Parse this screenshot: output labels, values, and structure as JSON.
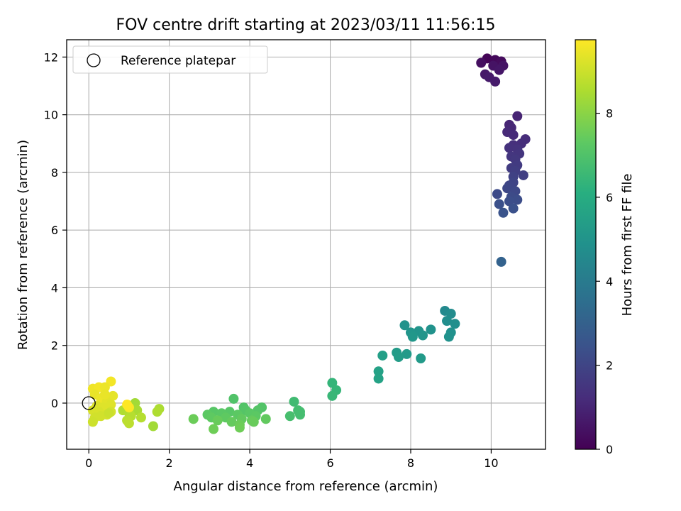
{
  "chart_data": {
    "type": "scatter",
    "title": "FOV centre drift starting at 2023/03/11 11:56:15",
    "xlabel": "Angular distance from reference (arcmin)",
    "ylabel": "Rotation from reference (arcmin)",
    "xlim": [
      -0.55,
      11.35
    ],
    "ylim": [
      -1.6,
      12.6
    ],
    "xticks": [
      0,
      2,
      4,
      6,
      8,
      10
    ],
    "yticks": [
      0,
      2,
      4,
      6,
      8,
      10,
      12
    ],
    "grid": true,
    "legend": {
      "position": "top-left",
      "entries": [
        "Reference platepar"
      ]
    },
    "reference_point": {
      "x": 0,
      "y": 0,
      "label": "Reference platepar"
    },
    "colorbar": {
      "label": "Hours from first FF file",
      "min": 0,
      "max": 9.75,
      "ticks": [
        0,
        2,
        4,
        6,
        8
      ],
      "colormap": "viridis"
    },
    "points": [
      {
        "x": 9.9,
        "y": 11.95,
        "t": 0.1
      },
      {
        "x": 10.1,
        "y": 11.9,
        "t": 0.2
      },
      {
        "x": 10.25,
        "y": 11.85,
        "t": 0.3
      },
      {
        "x": 9.75,
        "y": 11.8,
        "t": 0.4
      },
      {
        "x": 10.05,
        "y": 11.7,
        "t": 0.5
      },
      {
        "x": 10.3,
        "y": 11.7,
        "t": 0.55
      },
      {
        "x": 10.2,
        "y": 11.55,
        "t": 0.6
      },
      {
        "x": 9.85,
        "y": 11.4,
        "t": 0.65
      },
      {
        "x": 9.95,
        "y": 11.3,
        "t": 0.7
      },
      {
        "x": 10.1,
        "y": 11.15,
        "t": 0.75
      },
      {
        "x": 10.65,
        "y": 9.95,
        "t": 1.0
      },
      {
        "x": 10.45,
        "y": 9.65,
        "t": 1.05
      },
      {
        "x": 10.5,
        "y": 9.55,
        "t": 1.1
      },
      {
        "x": 10.4,
        "y": 9.4,
        "t": 1.15
      },
      {
        "x": 10.55,
        "y": 9.3,
        "t": 1.2
      },
      {
        "x": 10.85,
        "y": 9.15,
        "t": 1.25
      },
      {
        "x": 10.75,
        "y": 9.0,
        "t": 1.3
      },
      {
        "x": 10.55,
        "y": 8.95,
        "t": 1.35
      },
      {
        "x": 10.45,
        "y": 8.85,
        "t": 1.4
      },
      {
        "x": 10.65,
        "y": 8.8,
        "t": 1.45
      },
      {
        "x": 10.7,
        "y": 8.65,
        "t": 1.5
      },
      {
        "x": 10.5,
        "y": 8.55,
        "t": 1.55
      },
      {
        "x": 10.6,
        "y": 8.45,
        "t": 1.6
      },
      {
        "x": 10.65,
        "y": 8.25,
        "t": 1.7
      },
      {
        "x": 10.5,
        "y": 8.15,
        "t": 1.75
      },
      {
        "x": 10.6,
        "y": 8.05,
        "t": 1.8
      },
      {
        "x": 10.8,
        "y": 7.9,
        "t": 1.85
      },
      {
        "x": 10.55,
        "y": 7.85,
        "t": 1.9
      },
      {
        "x": 10.55,
        "y": 7.65,
        "t": 2.0
      },
      {
        "x": 10.45,
        "y": 7.55,
        "t": 2.05
      },
      {
        "x": 10.4,
        "y": 7.45,
        "t": 2.1
      },
      {
        "x": 10.6,
        "y": 7.35,
        "t": 2.15
      },
      {
        "x": 10.15,
        "y": 7.25,
        "t": 2.2
      },
      {
        "x": 10.5,
        "y": 7.15,
        "t": 2.25
      },
      {
        "x": 10.65,
        "y": 7.05,
        "t": 2.3
      },
      {
        "x": 10.45,
        "y": 7.0,
        "t": 2.35
      },
      {
        "x": 10.2,
        "y": 6.9,
        "t": 2.4
      },
      {
        "x": 10.55,
        "y": 6.75,
        "t": 2.45
      },
      {
        "x": 10.3,
        "y": 6.6,
        "t": 2.5
      },
      {
        "x": 10.25,
        "y": 4.9,
        "t": 3.1
      },
      {
        "x": 8.85,
        "y": 3.2,
        "t": 4.6
      },
      {
        "x": 9.0,
        "y": 3.1,
        "t": 4.7
      },
      {
        "x": 8.9,
        "y": 2.85,
        "t": 4.8
      },
      {
        "x": 9.1,
        "y": 2.75,
        "t": 4.85
      },
      {
        "x": 7.85,
        "y": 2.7,
        "t": 5.0
      },
      {
        "x": 8.5,
        "y": 2.55,
        "t": 4.95
      },
      {
        "x": 8.2,
        "y": 2.5,
        "t": 5.05
      },
      {
        "x": 8.0,
        "y": 2.45,
        "t": 5.1
      },
      {
        "x": 9.0,
        "y": 2.45,
        "t": 4.9
      },
      {
        "x": 8.3,
        "y": 2.35,
        "t": 5.1
      },
      {
        "x": 8.05,
        "y": 2.3,
        "t": 5.15
      },
      {
        "x": 8.95,
        "y": 2.3,
        "t": 4.95
      },
      {
        "x": 7.65,
        "y": 1.75,
        "t": 5.35
      },
      {
        "x": 7.9,
        "y": 1.7,
        "t": 5.3
      },
      {
        "x": 7.7,
        "y": 1.6,
        "t": 5.4
      },
      {
        "x": 7.3,
        "y": 1.65,
        "t": 5.5
      },
      {
        "x": 8.25,
        "y": 1.55,
        "t": 5.3
      },
      {
        "x": 7.2,
        "y": 1.1,
        "t": 5.6
      },
      {
        "x": 7.2,
        "y": 0.85,
        "t": 5.65
      },
      {
        "x": 6.05,
        "y": 0.7,
        "t": 6.4
      },
      {
        "x": 6.15,
        "y": 0.45,
        "t": 6.45
      },
      {
        "x": 6.05,
        "y": 0.25,
        "t": 6.5
      },
      {
        "x": 5.1,
        "y": 0.05,
        "t": 6.7
      },
      {
        "x": 5.2,
        "y": -0.25,
        "t": 6.75
      },
      {
        "x": 5.25,
        "y": -0.3,
        "t": 6.8
      },
      {
        "x": 5.25,
        "y": -0.4,
        "t": 6.8
      },
      {
        "x": 5.0,
        "y": -0.45,
        "t": 6.85
      },
      {
        "x": 3.6,
        "y": 0.15,
        "t": 7.05
      },
      {
        "x": 4.3,
        "y": -0.15,
        "t": 7.1
      },
      {
        "x": 3.85,
        "y": -0.15,
        "t": 7.1
      },
      {
        "x": 4.2,
        "y": -0.25,
        "t": 7.15
      },
      {
        "x": 3.9,
        "y": -0.25,
        "t": 7.15
      },
      {
        "x": 3.1,
        "y": -0.3,
        "t": 7.2
      },
      {
        "x": 3.5,
        "y": -0.3,
        "t": 7.2
      },
      {
        "x": 4.0,
        "y": -0.35,
        "t": 7.25
      },
      {
        "x": 3.3,
        "y": -0.35,
        "t": 7.25
      },
      {
        "x": 2.95,
        "y": -0.4,
        "t": 7.3
      },
      {
        "x": 3.7,
        "y": -0.4,
        "t": 7.3
      },
      {
        "x": 4.15,
        "y": -0.45,
        "t": 7.3
      },
      {
        "x": 3.4,
        "y": -0.5,
        "t": 7.35
      },
      {
        "x": 3.05,
        "y": -0.5,
        "t": 7.35
      },
      {
        "x": 3.8,
        "y": -0.55,
        "t": 7.4
      },
      {
        "x": 4.4,
        "y": -0.55,
        "t": 7.4
      },
      {
        "x": 4.05,
        "y": -0.6,
        "t": 7.45
      },
      {
        "x": 3.55,
        "y": -0.65,
        "t": 7.45
      },
      {
        "x": 3.2,
        "y": -0.6,
        "t": 7.5
      },
      {
        "x": 4.1,
        "y": -0.65,
        "t": 7.5
      },
      {
        "x": 3.75,
        "y": -0.75,
        "t": 7.55
      },
      {
        "x": 2.6,
        "y": -0.55,
        "t": 7.55
      },
      {
        "x": 3.1,
        "y": -0.9,
        "t": 7.6
      },
      {
        "x": 3.75,
        "y": -0.85,
        "t": 7.6
      },
      {
        "x": 1.15,
        "y": 0.0,
        "t": 8.4
      },
      {
        "x": 0.95,
        "y": -0.15,
        "t": 8.45
      },
      {
        "x": 1.2,
        "y": -0.25,
        "t": 8.5
      },
      {
        "x": 1.75,
        "y": -0.2,
        "t": 8.55
      },
      {
        "x": 0.85,
        "y": -0.25,
        "t": 8.6
      },
      {
        "x": 1.7,
        "y": -0.3,
        "t": 8.6
      },
      {
        "x": 1.0,
        "y": -0.35,
        "t": 8.65
      },
      {
        "x": 1.05,
        "y": -0.45,
        "t": 8.7
      },
      {
        "x": 1.3,
        "y": -0.5,
        "t": 8.7
      },
      {
        "x": 0.95,
        "y": -0.6,
        "t": 8.75
      },
      {
        "x": 1.0,
        "y": -0.7,
        "t": 8.8
      },
      {
        "x": 1.6,
        "y": -0.8,
        "t": 8.4
      },
      {
        "x": 0.55,
        "y": 0.75,
        "t": 9.6
      },
      {
        "x": 0.1,
        "y": 0.5,
        "t": 9.55
      },
      {
        "x": 0.25,
        "y": 0.55,
        "t": 9.6
      },
      {
        "x": 0.4,
        "y": 0.55,
        "t": 9.5
      },
      {
        "x": 0.15,
        "y": 0.3,
        "t": 9.45
      },
      {
        "x": 0.6,
        "y": 0.25,
        "t": 9.4
      },
      {
        "x": 0.3,
        "y": 0.15,
        "t": 9.5
      },
      {
        "x": 0.45,
        "y": 0.05,
        "t": 9.35
      },
      {
        "x": 0.55,
        "y": -0.05,
        "t": 9.3
      },
      {
        "x": 0.2,
        "y": -0.1,
        "t": 9.25
      },
      {
        "x": 0.35,
        "y": -0.15,
        "t": 9.3
      },
      {
        "x": 0.1,
        "y": -0.25,
        "t": 9.2
      },
      {
        "x": 0.55,
        "y": -0.3,
        "t": 9.15
      },
      {
        "x": 0.25,
        "y": -0.3,
        "t": 9.2
      },
      {
        "x": 0.45,
        "y": -0.4,
        "t": 9.15
      },
      {
        "x": 0.3,
        "y": -0.45,
        "t": 9.1
      },
      {
        "x": 0.15,
        "y": -0.5,
        "t": 9.1
      },
      {
        "x": 0.1,
        "y": -0.65,
        "t": 9.05
      },
      {
        "x": 0.5,
        "y": -0.35,
        "t": 9.0
      },
      {
        "x": 1.0,
        "y": -0.15,
        "t": 9.7
      },
      {
        "x": 0.95,
        "y": -0.05,
        "t": 9.75
      },
      {
        "x": 0.4,
        "y": 0.3,
        "t": 9.45
      }
    ]
  }
}
